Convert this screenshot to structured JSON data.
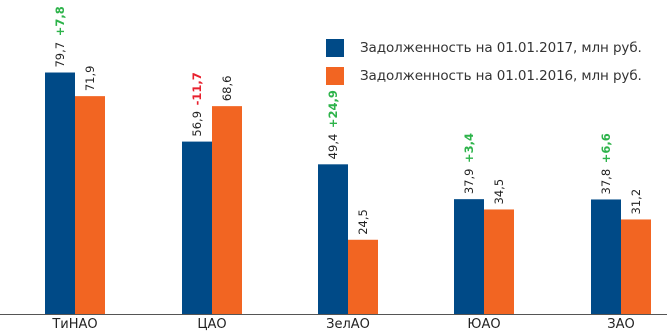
{
  "chart_data": {
    "type": "bar",
    "categories": [
      "ТиНАО",
      "ЦАО",
      "ЗелАО",
      "ЮАО",
      "ЗАО"
    ],
    "series": [
      {
        "name": "Задолженность на 01.01.2017, млн руб.",
        "color": "#004a87",
        "values": [
          79.7,
          56.9,
          49.4,
          37.9,
          37.8
        ],
        "labels": [
          "79,7",
          "56,9",
          "49,4",
          "37,9",
          "37,8"
        ]
      },
      {
        "name": "Задолженность на 01.01.2016, млн руб.",
        "color": "#f26522",
        "values": [
          71.9,
          68.6,
          24.5,
          34.5,
          31.2
        ],
        "labels": [
          "71,9",
          "68,6",
          "24,5",
          "34,5",
          "31,2"
        ]
      }
    ],
    "changes": [
      {
        "label": "+7,8",
        "color": "#2db34a"
      },
      {
        "label": "-11,7",
        "color": "#e8212e"
      },
      {
        "label": "+24,9",
        "color": "#2db34a"
      },
      {
        "label": "+3,4",
        "color": "#2db34a"
      },
      {
        "label": "+6,6",
        "color": "#2db34a"
      }
    ],
    "ylim": [
      0,
      100
    ],
    "grid": false,
    "legend_position": "top-right",
    "axis_color": "#555555",
    "label_color": "#222222"
  }
}
